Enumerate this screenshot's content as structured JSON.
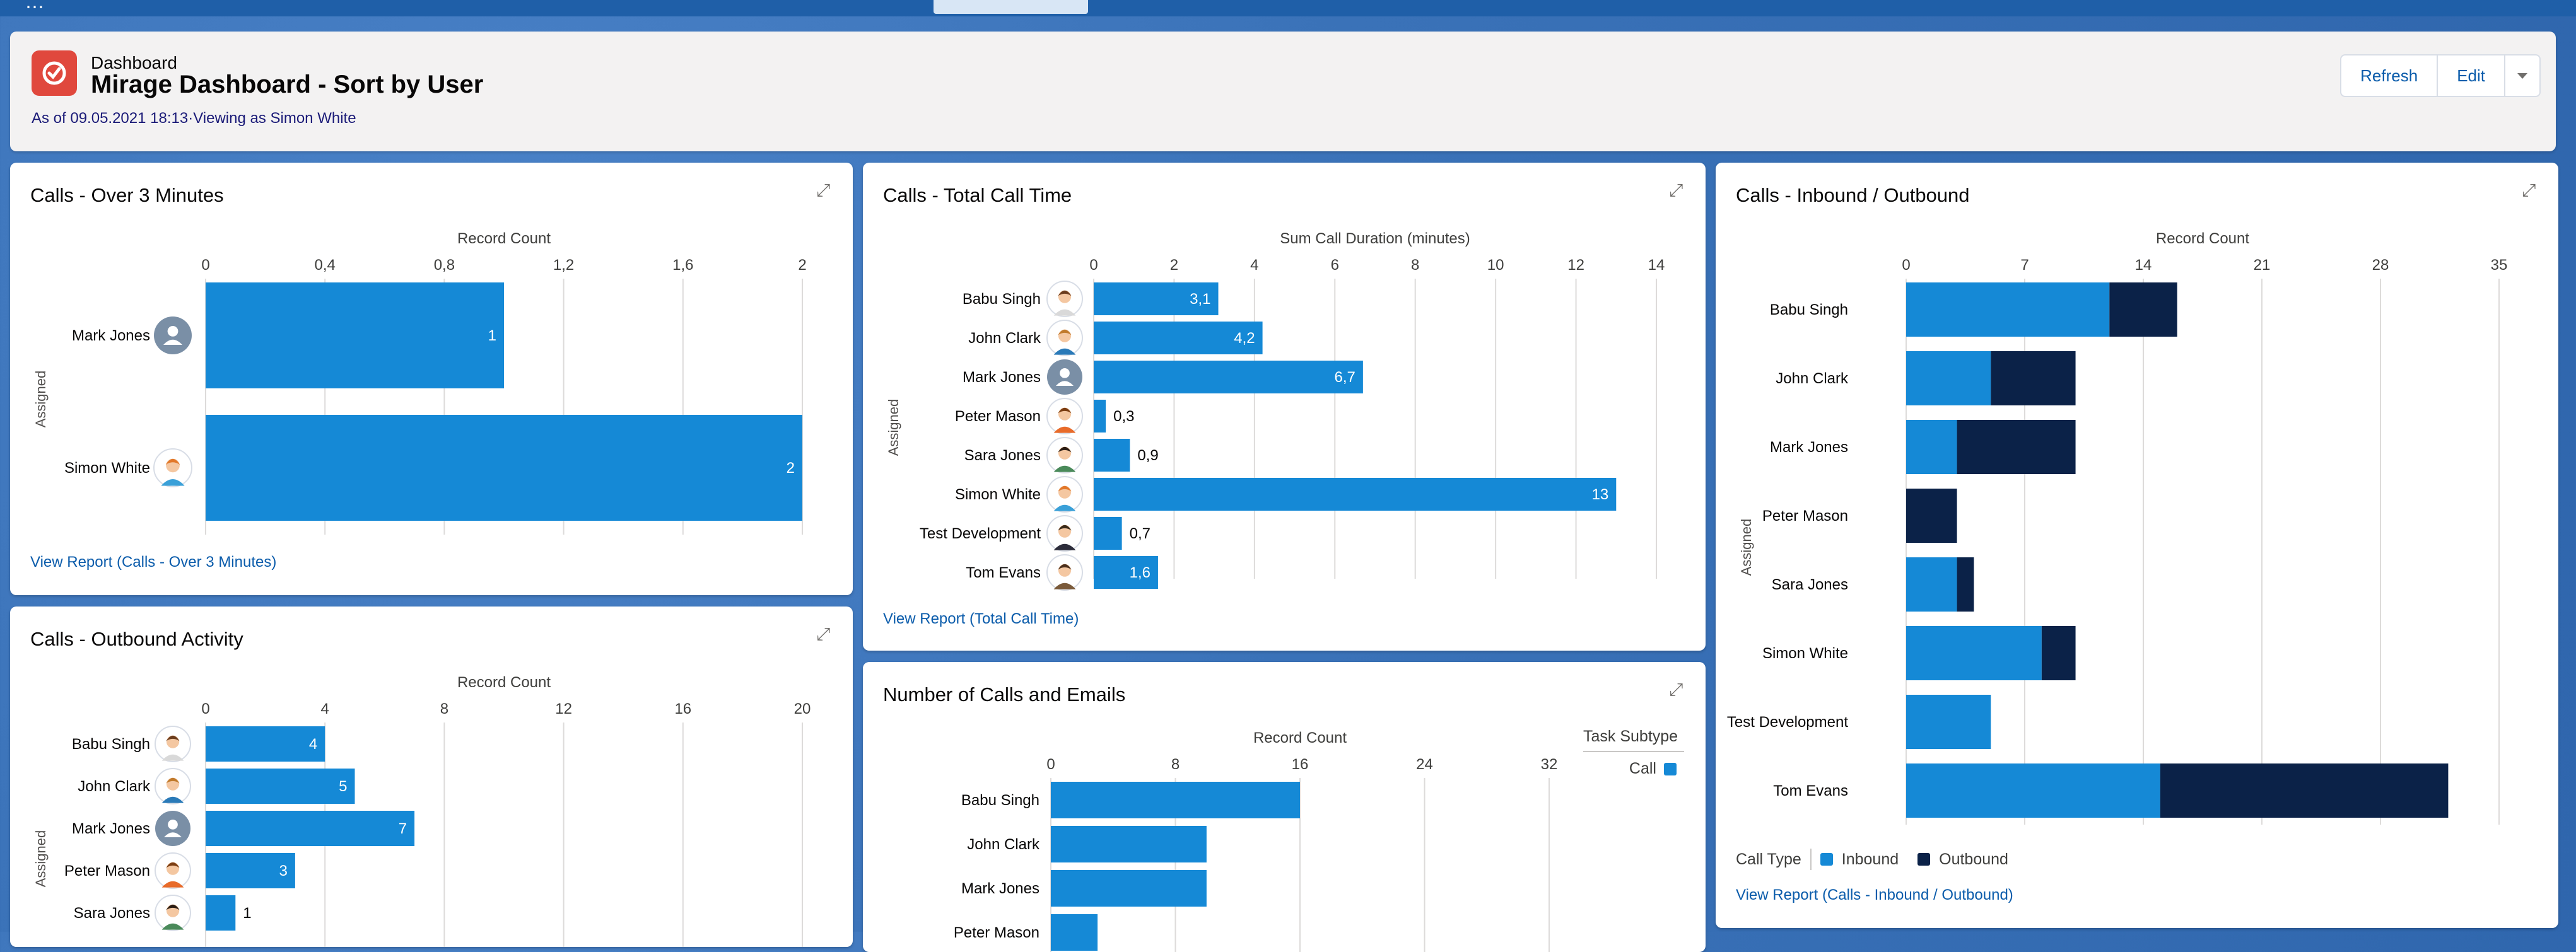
{
  "header": {
    "kicker": "Dashboard",
    "title": "Mirage Dashboard - Sort by User",
    "subtitle": "As of 09.05.2021 18:13·Viewing as Simon White",
    "buttons": {
      "refresh": "Refresh",
      "edit": "Edit"
    }
  },
  "colors": {
    "inbound": "#1589d6",
    "outbound": "#0b2248",
    "grid": "#dddbda",
    "link": "#0b5cab"
  },
  "cards": {
    "over3": {
      "title": "Calls - Over 3 Minutes",
      "link": "View Report (Calls - Over 3 Minutes)"
    },
    "total": {
      "title": "Calls - Total Call Time",
      "link": "View Report (Total Call Time)"
    },
    "inout": {
      "title": "Calls - Inbound / Outbound",
      "link": "View Report (Calls - Inbound / Outbound)",
      "legend_title": "Call Type",
      "legend_inbound": "Inbound",
      "legend_outbound": "Outbound"
    },
    "outbound": {
      "title": "Calls - Outbound Activity"
    },
    "emails": {
      "title": "Number of Calls and Emails",
      "legend_title": "Task Subtype",
      "legend_call": "Call"
    }
  },
  "chart_data": [
    {
      "id": "over3",
      "type": "bar",
      "orientation": "horizontal",
      "xlabel": "Record Count",
      "ylabel": "Assigned",
      "ticks": [
        "0",
        "0,4",
        "0,8",
        "1,2",
        "1,6",
        "2"
      ],
      "xlim": [
        0,
        2
      ],
      "categories": [
        "Mark Jones",
        "Simon White"
      ],
      "avatars": [
        "generic",
        "female-orange"
      ],
      "values": [
        1,
        2
      ],
      "data_labels": [
        "1",
        "2"
      ]
    },
    {
      "id": "total",
      "type": "bar",
      "orientation": "horizontal",
      "xlabel": "Sum Call Duration (minutes)",
      "ylabel": "Assigned",
      "ticks": [
        "0",
        "2",
        "4",
        "6",
        "8",
        "10",
        "12",
        "14"
      ],
      "xlim": [
        0,
        14
      ],
      "categories": [
        "Babu Singh",
        "John Clark",
        "Mark Jones",
        "Peter Mason",
        "Sara Jones",
        "Simon White",
        "Test Development",
        "Tom Evans"
      ],
      "avatars": [
        "female-brown",
        "male-glasses",
        "generic",
        "male-orange",
        "female-dark",
        "female-orange",
        "male-suit",
        "male-beard"
      ],
      "values": [
        3.1,
        4.2,
        6.7,
        0.3,
        0.9,
        13,
        0.7,
        1.6
      ],
      "data_labels": [
        "3,1",
        "4,2",
        "6,7",
        "0,3",
        "0,9",
        "13",
        "0,7",
        "1,6"
      ]
    },
    {
      "id": "inout",
      "type": "bar",
      "orientation": "horizontal",
      "stacked": true,
      "xlabel": "Record Count",
      "ylabel": "Assigned",
      "ticks": [
        "0",
        "7",
        "14",
        "21",
        "28",
        "35"
      ],
      "xlim": [
        0,
        35
      ],
      "categories": [
        "Babu Singh",
        "John Clark",
        "Mark Jones",
        "Peter Mason",
        "Sara Jones",
        "Simon White",
        "Test Development",
        "Tom Evans"
      ],
      "series": [
        {
          "name": "Inbound",
          "values": [
            12,
            5,
            3,
            0,
            3,
            8,
            5,
            15
          ]
        },
        {
          "name": "Outbound",
          "values": [
            4,
            5,
            7,
            3,
            1,
            2,
            0,
            17
          ]
        }
      ]
    },
    {
      "id": "outbound",
      "type": "bar",
      "orientation": "horizontal",
      "xlabel": "Record Count",
      "ylabel": "Assigned",
      "ticks": [
        "0",
        "4",
        "8",
        "12",
        "16",
        "20"
      ],
      "xlim": [
        0,
        20
      ],
      "categories": [
        "Babu Singh",
        "John Clark",
        "Mark Jones",
        "Peter Mason",
        "Sara Jones"
      ],
      "avatars": [
        "female-brown",
        "male-glasses",
        "generic",
        "male-orange",
        "female-dark"
      ],
      "values": [
        4,
        5,
        7,
        3,
        1
      ],
      "data_labels": [
        "4",
        "5",
        "7",
        "3",
        "1"
      ]
    },
    {
      "id": "emails",
      "type": "bar",
      "orientation": "horizontal",
      "xlabel": "Record Count",
      "ticks": [
        "0",
        "8",
        "16",
        "24",
        "32"
      ],
      "xlim": [
        0,
        32
      ],
      "categories": [
        "Babu Singh",
        "John Clark",
        "Mark Jones",
        "Peter Mason"
      ],
      "values": [
        16,
        10,
        10,
        3
      ]
    }
  ]
}
